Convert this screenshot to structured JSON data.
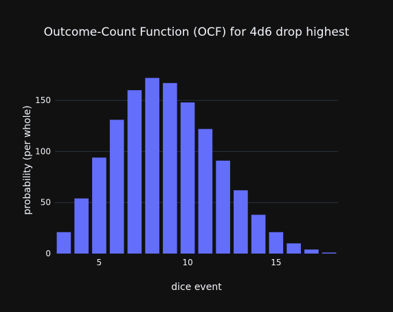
{
  "colors": {
    "background": "#111111",
    "plot_background": "#111111",
    "bar": "#636efa",
    "grid": "#283442",
    "text": "#f2f5fa"
  },
  "chart_data": {
    "type": "bar",
    "title": "Outcome-Count Function (OCF) for 4d6 drop highest",
    "xlabel": "dice event",
    "ylabel": "probability (per whole)",
    "x": [
      3,
      4,
      5,
      6,
      7,
      8,
      9,
      10,
      11,
      12,
      13,
      14,
      15,
      16,
      17,
      18
    ],
    "values": [
      21,
      54,
      94,
      131,
      160,
      172,
      167,
      148,
      122,
      91,
      62,
      38,
      21,
      10,
      4,
      1
    ],
    "xlim": [
      2.5,
      18.5
    ],
    "ylim": [
      0,
      181
    ],
    "xticks": [
      5,
      10,
      15
    ],
    "yticks": [
      0,
      50,
      100,
      150
    ],
    "grid": true
  }
}
